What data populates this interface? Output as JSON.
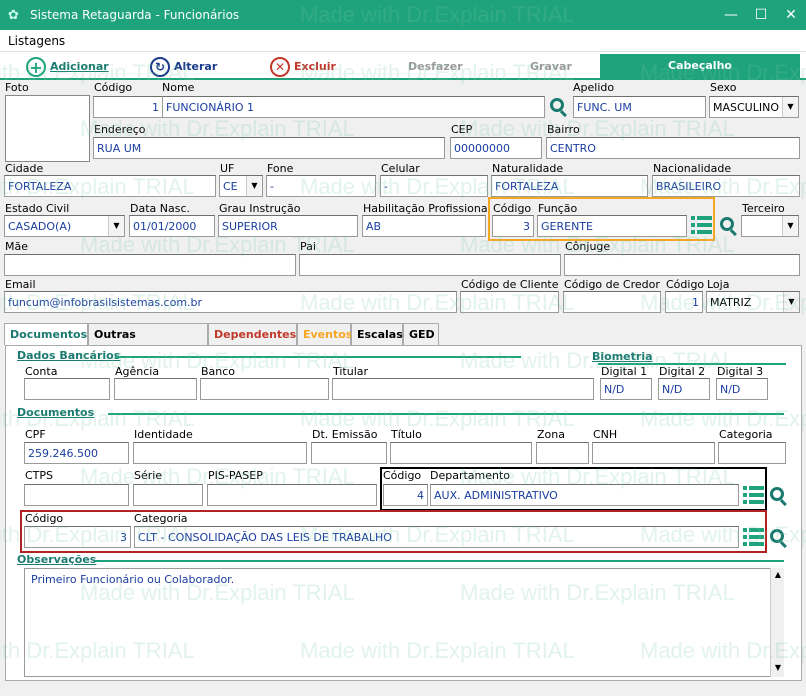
{
  "window": {
    "title": "Sistema Retaguarda - Funcionários",
    "minimize": "—",
    "maximize": "☐",
    "close": "✕"
  },
  "menu": {
    "listagens": "Listagens"
  },
  "toolbar": {
    "adicionar": "Adicionar",
    "alterar": "Alterar",
    "excluir": "Excluir",
    "desfazer": "Desfazer",
    "gravar": "Gravar",
    "cabecalho": "Cabeçalho"
  },
  "header": {
    "foto_label": "Foto",
    "codigo_label": "Código",
    "codigo": "1",
    "nome_label": "Nome",
    "nome": "FUNCIONÁRIO 1",
    "apelido_label": "Apelido",
    "apelido": "FUNC. UM",
    "sexo_label": "Sexo",
    "sexo": "MASCULINO",
    "endereco_label": "Endereço",
    "endereco": "RUA UM",
    "cep_label": "CEP",
    "cep": "00000000",
    "bairro_label": "Bairro",
    "bairro": "CENTRO",
    "cidade_label": "Cidade",
    "cidade": "FORTALEZA",
    "uf_label": "UF",
    "uf": "CE",
    "fone_label": "Fone",
    "fone": "-",
    "celular_label": "Celular",
    "celular": "-",
    "naturalidade_label": "Naturalidade",
    "naturalidade": "FORTALEZA",
    "nacionalidade_label": "Nacionalidade",
    "nacionalidade": "BRASILEIRO",
    "estado_civil_label": "Estado Civil",
    "estado_civil": "CASADO(A)",
    "data_nasc_label": "Data Nasc.",
    "data_nasc": "01/01/2000",
    "grau_label": "Grau Instrução",
    "grau": "SUPERIOR",
    "habilitacao_label": "Habilitação Profissional",
    "habilitacao": "AB",
    "funcao_codigo_label": "Código",
    "funcao_codigo": "3",
    "funcao_label": "Função",
    "funcao": "GERENTE",
    "terceiro_label": "Terceiro",
    "terceiro": "",
    "mae_label": "Mãe",
    "mae": "",
    "pai_label": "Pai",
    "pai": "",
    "conjuge_label": "Cônjuge",
    "conjuge": "",
    "email_label": "Email",
    "email": "funcum@infobrasilsistemas.com.br",
    "cod_cliente_label": "Código de Cliente",
    "cod_cliente": "",
    "cod_credor_label": "Código de Credor",
    "cod_credor": "",
    "loja_codigo_label": "Código",
    "loja_codigo": "1",
    "loja_label": "Loja",
    "loja": "MATRIZ"
  },
  "tabs": [
    {
      "label": "Documentos",
      "color": "#1a7a70"
    },
    {
      "label": "Outras Informações",
      "color": "#000000"
    },
    {
      "label": "Dependentes",
      "color": "#c0392b"
    },
    {
      "label": "Eventos",
      "color": "#f5a623"
    },
    {
      "label": "Escalas",
      "color": "#000000"
    },
    {
      "label": "GED",
      "color": "#000000"
    }
  ],
  "documentos": {
    "dados_bancarios": "Dados Bancários",
    "biometria": "Biometria",
    "conta_label": "Conta",
    "agencia_label": "Agência",
    "banco_label": "Banco",
    "titular_label": "Titular",
    "digital1_label": "Digital 1",
    "digital1": "N/D",
    "digital2_label": "Digital 2",
    "digital2": "N/D",
    "digital3_label": "Digital 3",
    "digital3": "N/D",
    "documentos_title": "Documentos",
    "cpf_label": "CPF",
    "cpf": "259.246.500",
    "identidade_label": "Identidade",
    "emissao_label": "Dt. Emissão",
    "titulo_label": "Título",
    "zona_label": "Zona",
    "cnh_label": "CNH",
    "categoria_label": "Categoria",
    "ctps_label": "CTPS",
    "serie_label": "Série",
    "pis_label": "PIS-PASEP",
    "depto_codigo_label": "Código",
    "depto_codigo": "4",
    "depto_label": "Departamento",
    "depto": "AUX. ADMINISTRATIVO",
    "cat_codigo_label": "Código",
    "cat_codigo": "3",
    "cat_label": "Categoria",
    "cat": "CLT - CONSOLIDAÇÃO DAS LEIS DE TRABALHO",
    "observacoes_title": "Observações",
    "observacoes": "Primeiro Funcionário ou Colaborador."
  },
  "watermark": "Made with Dr.Explain TRIAL"
}
